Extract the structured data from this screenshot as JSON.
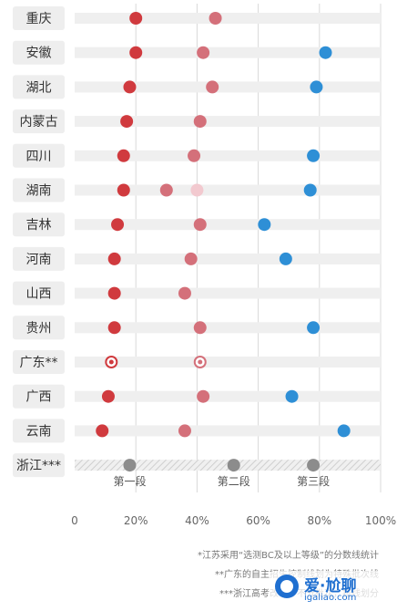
{
  "chart_data": {
    "type": "scatter",
    "title": "",
    "xlabel": "",
    "ylabel": "",
    "xlim": [
      0,
      100
    ],
    "x_ticks": [
      "0",
      "20%",
      "40%",
      "60%",
      "80%",
      "100%"
    ],
    "x_tick_values": [
      0,
      20,
      40,
      60,
      80,
      100
    ],
    "grid": true,
    "segment_labels": [
      "第一段",
      "第二段",
      "第三段"
    ],
    "provinces": [
      {
        "name": "重庆",
        "values": [
          20,
          46,
          null
        ]
      },
      {
        "name": "安徽",
        "values": [
          20,
          42,
          82
        ]
      },
      {
        "name": "湖北",
        "values": [
          18,
          45,
          79
        ]
      },
      {
        "name": "内蒙古",
        "values": [
          17,
          41,
          null
        ]
      },
      {
        "name": "四川",
        "values": [
          16,
          39,
          78
        ]
      },
      {
        "name": "湖南",
        "values": [
          16,
          30,
          77
        ]
      },
      {
        "name": "吉林",
        "values": [
          14,
          41,
          62
        ]
      },
      {
        "name": "河南",
        "values": [
          13,
          38,
          69
        ]
      },
      {
        "name": "山西",
        "values": [
          13,
          36,
          null
        ]
      },
      {
        "name": "贵州",
        "values": [
          13,
          41,
          78
        ]
      },
      {
        "name": "广东**",
        "values": [
          12,
          41,
          null
        ]
      },
      {
        "name": "广西",
        "values": [
          11,
          42,
          71
        ]
      },
      {
        "name": "云南",
        "values": [
          9,
          36,
          88
        ]
      },
      {
        "name": "浙江***",
        "values": [
          18,
          52,
          78
        ]
      }
    ],
    "colors": {
      "first": "#d03a3e",
      "second": "#d4707a",
      "third": "#2e8fd6",
      "gray": "#8c8c8c",
      "bar": "#efefef",
      "label_box": "#eeeeee"
    }
  },
  "footnotes": [
    "*江苏采用“选测BC及以上等级”的分数线统计",
    "**广东的自主招生控制线划为特殊批次线",
    "***浙江高考改革，不分批次，按线划分"
  ],
  "watermark": {
    "title": "爱·尬聊",
    "url": "igaliao.com"
  }
}
